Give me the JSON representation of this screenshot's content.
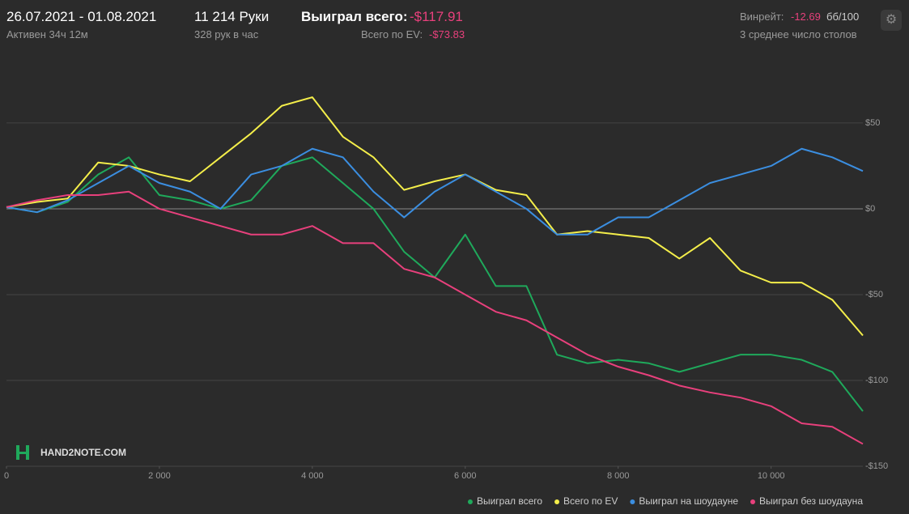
{
  "header": {
    "date_range": "26.07.2021 - 01.08.2021",
    "active": "Активен 34ч 12м",
    "hands": "11 214 Руки",
    "hands_per_hour": "328 рук в час",
    "won_label": "Выиграл всего:",
    "won_value": "-$117.91",
    "ev_label": "Всего по EV:",
    "ev_value": "-$73.83",
    "winrate_label": "Винрейт:",
    "winrate_value": "-12.69",
    "winrate_unit": "бб/100",
    "tables": "3 среднее число столов",
    "logo": "HAND2NOTE.COM"
  },
  "chart_data": {
    "type": "line",
    "x": [
      0,
      400,
      800,
      1200,
      1600,
      2000,
      2400,
      2800,
      3200,
      3600,
      4000,
      4400,
      4800,
      5200,
      5600,
      6000,
      6400,
      6800,
      7200,
      7600,
      8000,
      8400,
      8800,
      9200,
      9600,
      10000,
      10400,
      10800,
      11200
    ],
    "xlim": [
      0,
      11200
    ],
    "ylim": [
      -150,
      91
    ],
    "xticks": [
      0,
      {
        "value": 2000,
        "label": "2 000"
      },
      {
        "value": 4000,
        "label": "4 000"
      },
      {
        "value": 6000,
        "label": "6 000"
      },
      {
        "value": 8000,
        "label": "8 000"
      },
      {
        "value": 10000,
        "label": "10 000"
      }
    ],
    "yticks": [
      {
        "value": 50,
        "label": "$50"
      },
      {
        "value": 0,
        "label": "$0"
      },
      {
        "value": -50,
        "label": "-$50"
      },
      {
        "value": -100,
        "label": "-$100"
      },
      {
        "value": -150,
        "label": "-$150"
      }
    ],
    "grid": true,
    "legend_position": "bottom-right",
    "series": [
      {
        "name": "Выиграл всего",
        "color": "#1fa95b",
        "values": [
          1,
          -2,
          4,
          20,
          30,
          8,
          5,
          0,
          5,
          25,
          30,
          15,
          0,
          -25,
          -40,
          -15,
          -45,
          -45,
          -85,
          -90,
          -88,
          -90,
          -95,
          -90,
          -85,
          -85,
          -88,
          -95,
          -117.91
        ]
      },
      {
        "name": "Всего по EV",
        "color": "#f4ee4a",
        "values": [
          1,
          4,
          6,
          27,
          25,
          20,
          16,
          30,
          44,
          60,
          65,
          42,
          30,
          11,
          16,
          20,
          11,
          8,
          -15,
          -13,
          -15,
          -17,
          -29,
          -17,
          -36,
          -43,
          -43,
          -53,
          -73.83
        ]
      },
      {
        "name": "Выиграл на шоудауне",
        "color": "#3b8ee0",
        "values": [
          1,
          -2,
          5,
          15,
          25,
          15,
          10,
          0,
          20,
          25,
          35,
          30,
          10,
          -5,
          10,
          20,
          10,
          0,
          -15,
          -15,
          -5,
          -5,
          5,
          15,
          20,
          25,
          35,
          30,
          22
        ]
      },
      {
        "name": "Выиграл без шоудауна",
        "color": "#e8407c",
        "values": [
          1,
          5,
          8,
          8,
          10,
          0,
          -5,
          -10,
          -15,
          -15,
          -10,
          -20,
          -20,
          -35,
          -40,
          -50,
          -60,
          -65,
          -75,
          -85,
          -92,
          -97,
          -103,
          -107,
          -110,
          -115,
          -125,
          -127,
          -137
        ]
      }
    ]
  }
}
